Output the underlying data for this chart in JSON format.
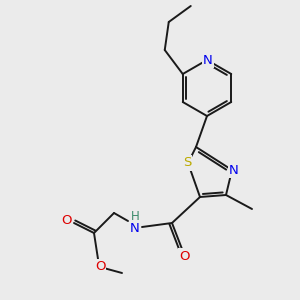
{
  "background_color": "#ebebeb",
  "bond_color": "#1a1a1a",
  "atom_colors": {
    "N": "#0000ee",
    "O": "#dd0000",
    "S": "#bbaa00",
    "C": "#1a1a1a",
    "H": "#3a8a6a"
  },
  "figsize": [
    3.0,
    3.0
  ],
  "dpi": 100
}
